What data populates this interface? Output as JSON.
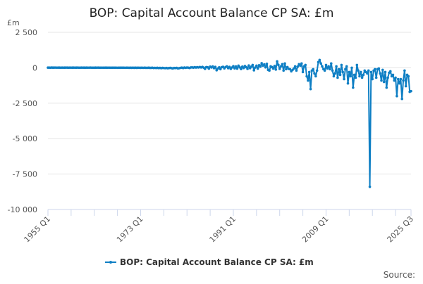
{
  "chart_data": {
    "type": "line",
    "title": "BOP: Capital Account Balance CP SA: £m",
    "ylabel": "£m",
    "xlabel": "",
    "x_start": "1955 Q1",
    "x_end": "2025 Q3",
    "frequency": "quarterly",
    "x_tick_labels": [
      "1955 Q1",
      "1973 Q1",
      "1991 Q1",
      "2009 Q1",
      "2025 Q3"
    ],
    "y_tick_labels": [
      "2 500",
      "0",
      "-2 500",
      "-5 000",
      "-7 500",
      "-10 000"
    ],
    "y_ticks": [
      2500,
      0,
      -2500,
      -5000,
      -7500,
      -10000
    ],
    "ylim": [
      -10000,
      2500
    ],
    "grid": true,
    "legend_position": "bottom",
    "source_label": "Source:",
    "series": [
      {
        "name": "BOP: Capital Account Balance CP SA: £m",
        "color": "#0f7fc4",
        "values": [
          10,
          12,
          8,
          15,
          9,
          11,
          14,
          7,
          12,
          10,
          8,
          13,
          6,
          9,
          11,
          10,
          8,
          12,
          7,
          9,
          10,
          6,
          9,
          11,
          5,
          8,
          12,
          7,
          9,
          4,
          10,
          6,
          7,
          11,
          5,
          8,
          4,
          9,
          6,
          10,
          8,
          5,
          7,
          3,
          6,
          9,
          4,
          7,
          5,
          2,
          8,
          6,
          3,
          7,
          1,
          5,
          4,
          6,
          2,
          8,
          1,
          5,
          3,
          -2,
          4,
          0,
          6,
          -3,
          2,
          -4,
          5,
          1,
          -2,
          3,
          -5,
          2,
          0,
          -6,
          4,
          -3,
          -8,
          2,
          -12,
          -5,
          -15,
          -4,
          -20,
          -10,
          -25,
          -8,
          -18,
          -30,
          -12,
          -35,
          -20,
          -5,
          -28,
          -40,
          -15,
          -22,
          -10,
          -45,
          -25,
          -5,
          10,
          -20,
          15,
          -5,
          20,
          5,
          -15,
          25,
          30,
          10,
          45,
          15,
          40,
          20,
          55,
          25,
          60,
          10,
          -80,
          50,
          35,
          -60,
          80,
          20,
          90,
          -30,
          60,
          -170,
          -60,
          30,
          -100,
          40,
          70,
          -40,
          50,
          100,
          -30,
          60,
          -80,
          20,
          110,
          -40,
          90,
          -60,
          150,
          30,
          -90,
          80,
          -20,
          120,
          40,
          -80,
          160,
          -30,
          80,
          200,
          -180,
          20,
          150,
          -60,
          180,
          80,
          320,
          150,
          240,
          30,
          280,
          -150,
          -200,
          100,
          50,
          -60,
          120,
          -120,
          450,
          200,
          -80,
          100,
          250,
          -200,
          300,
          -100,
          50,
          -80,
          -100,
          -250,
          -150,
          -50,
          100,
          -200,
          80,
          250,
          150,
          300,
          -300,
          100,
          200,
          -600,
          -900,
          -300,
          -1500,
          -200,
          -100,
          -400,
          -600,
          -200,
          400,
          550,
          300,
          100,
          -100,
          -200,
          200,
          -50,
          100,
          -100,
          300,
          -200,
          -600,
          -400,
          100,
          -700,
          -100,
          -500,
          200,
          -300,
          -800,
          -100,
          100,
          -1100,
          -300,
          -600,
          0,
          -1400,
          -500,
          -700,
          200,
          -200,
          -600,
          -300,
          -700,
          -500,
          -200,
          -300,
          -400,
          -200,
          -8400,
          -300,
          -800,
          -200,
          -100,
          -700,
          -100,
          -50,
          -400,
          -900,
          -150,
          -1000,
          -300,
          -1400,
          -700,
          -350,
          -250,
          -600,
          -500,
          -900,
          -700,
          -2000,
          -800,
          -1100,
          -800,
          -2200,
          -900,
          -200,
          -1300,
          -500,
          -600,
          -1700,
          -1650
        ]
      }
    ]
  }
}
